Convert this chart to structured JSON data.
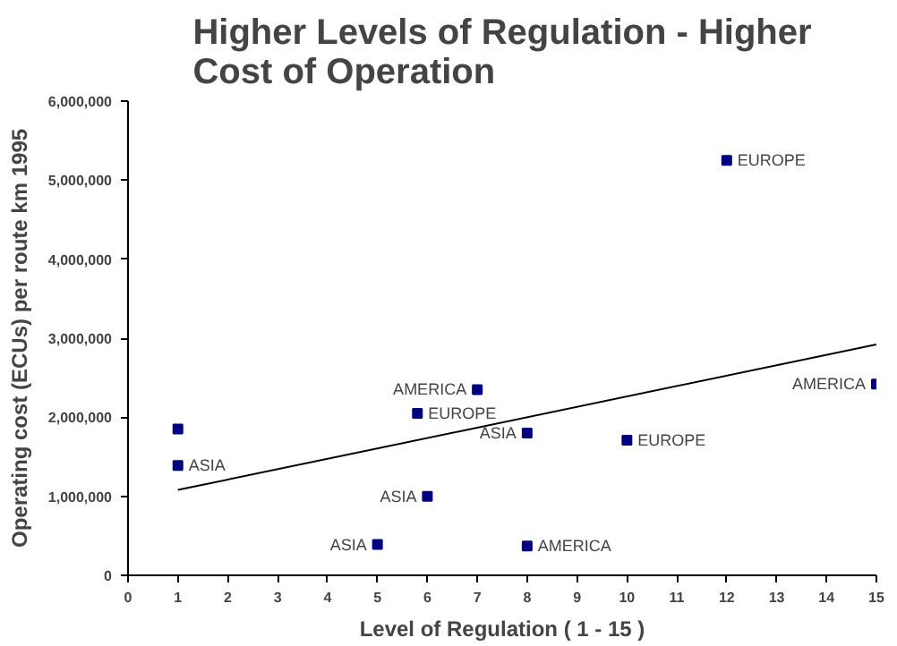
{
  "chart_data": {
    "type": "scatter",
    "title": "Higher Levels of Regulation - Higher Cost of Operation",
    "xlabel": "Level of Regulation ( 1 - 15 )",
    "ylabel": "Operating cost (ECUs) per route km 1995",
    "xlim": [
      0,
      15
    ],
    "xticks": [
      0,
      1,
      2,
      3,
      4,
      5,
      6,
      7,
      8,
      9,
      10,
      11,
      12,
      13,
      14,
      15
    ],
    "ylim": [
      0,
      6000000
    ],
    "yticks": [
      {
        "value": 0,
        "label": "0"
      },
      {
        "value": 1000000,
        "label": "1,000,000"
      },
      {
        "value": 2000000,
        "label": "2,000,000"
      },
      {
        "value": 3000000,
        "label": "3,000,000"
      },
      {
        "value": 4000000,
        "label": "4,000,000"
      },
      {
        "value": 5000000,
        "label": "5,000,000"
      },
      {
        "value": 6000000,
        "label": "6,000,000"
      }
    ],
    "grid": false,
    "series": [
      {
        "marker": "square",
        "color": "#000080",
        "x": [
          1,
          1,
          5,
          6,
          5.8,
          7,
          8,
          8,
          10,
          12,
          15
        ],
        "values": [
          1850000,
          1390000,
          390000,
          1000000,
          2050000,
          2350000,
          1800000,
          370000,
          1710000,
          5250000,
          2420000
        ]
      },
      {
        "type": "line",
        "color": "#000000",
        "x": [
          1,
          15
        ],
        "values": [
          1080000,
          2920000
        ]
      }
    ],
    "annotations": [
      {
        "text": "ASIA",
        "x": 1,
        "y": 1390000
      },
      {
        "text": "ASIA",
        "x": 5,
        "y": 390000
      },
      {
        "text": "ASIA",
        "x": 6,
        "y": 1000000
      },
      {
        "text": "EUROPE",
        "x": 5.8,
        "y": 2050000
      },
      {
        "text": "AMERICA",
        "x": 7,
        "y": 2350000
      },
      {
        "text": "ASIA",
        "x": 8,
        "y": 1800000
      },
      {
        "text": "AMERICA",
        "x": 8,
        "y": 370000
      },
      {
        "text": "EUROPE",
        "x": 10,
        "y": 1710000
      },
      {
        "text": "EUROPE",
        "x": 12,
        "y": 5250000
      },
      {
        "text": "AMERICA",
        "x": 15,
        "y": 2420000
      }
    ]
  }
}
